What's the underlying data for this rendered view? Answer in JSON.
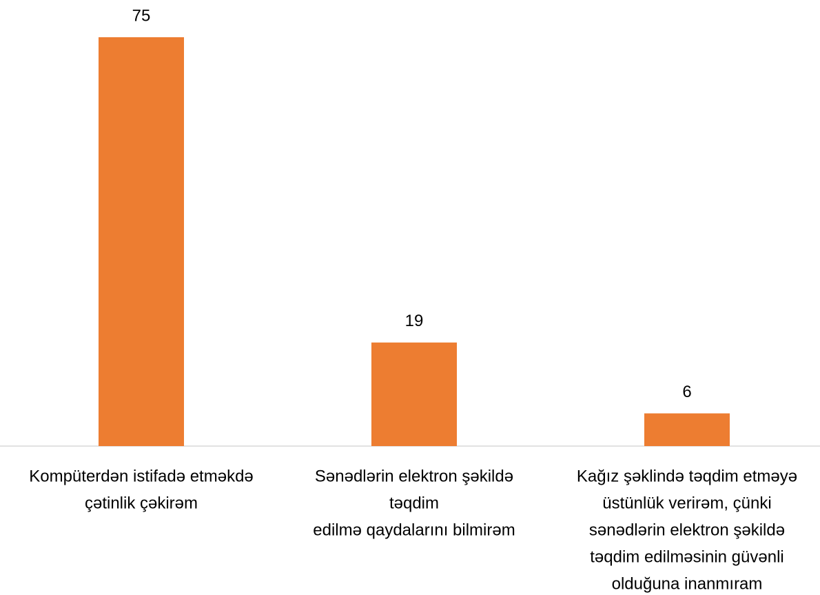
{
  "chart_data": {
    "type": "bar",
    "categories": [
      [
        "Kompüterdən istifadə etməkdə",
        "çətinlik çəkirəm"
      ],
      [
        "Sənədlərin elektron şəkildə",
        "təqdim",
        "edilmə qaydalarını bilmirəm"
      ],
      [
        "Kağız şəklində təqdim etməyə",
        "üstünlük verirəm, çünki",
        "sənədlərin elektron şəkildə",
        "təqdim edilməsinin güvənli",
        "olduğuna inanmıram"
      ]
    ],
    "values": [
      75,
      19,
      6
    ],
    "color": "#ed7d31",
    "ylim": [
      0,
      75
    ]
  }
}
